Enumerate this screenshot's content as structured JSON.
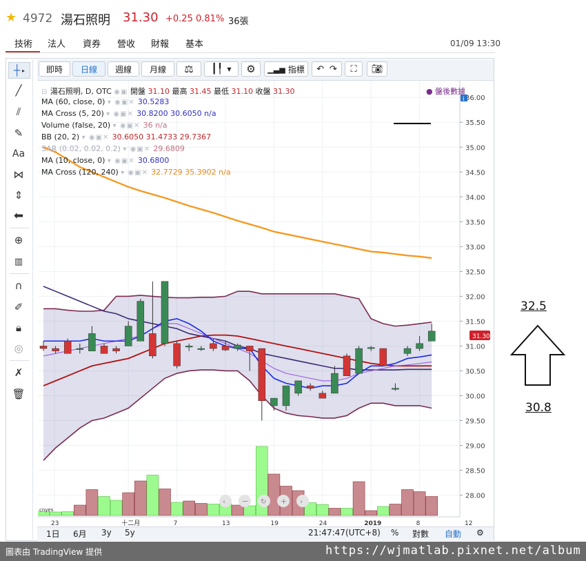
{
  "header": {
    "code": "4972",
    "name": "湯石照明",
    "price": "31.30",
    "change": "+0.25",
    "change_pct": "0.81%",
    "volume": "36張"
  },
  "tabs": [
    "技術",
    "法人",
    "資券",
    "營收",
    "財報",
    "基本"
  ],
  "datetime": "01/09 13:30",
  "toolbar": {
    "intraday": "即時",
    "daily": "日線",
    "weekly": "週線",
    "monthly": "月線",
    "indicators": "指標"
  },
  "legend": {
    "symbol": "湯石照明, D, OTC",
    "open_label": "開盤",
    "open": "31.10",
    "high_label": "最高",
    "high": "31.45",
    "low_label": "最低",
    "low": "31.10",
    "close_label": "收盤",
    "close": "31.30",
    "after_hours": "盤後數據",
    "rows": [
      {
        "name": "MA (60, close, 0)",
        "values": "30.5283",
        "cls": "a"
      },
      {
        "name": "MA Cross (5, 20)",
        "values": "30.8200",
        "v2": "30.6050",
        "v3": "n/a",
        "cls": "a"
      },
      {
        "name": "Volume (false, 20)",
        "values": "36",
        "v3": "n/a",
        "cls": "g"
      },
      {
        "name": "BB (20, 2)",
        "values": "30.6050",
        "v2": "31.4733",
        "v3": "29.7367",
        "cls": "r"
      },
      {
        "name": "SAR (0.02, 0.02, 0.2)",
        "values": "29.6809",
        "cls": "g"
      },
      {
        "name": "MA (10, close, 0)",
        "values": "30.6800",
        "cls": "a"
      },
      {
        "name": "MA Cross (120, 240)",
        "values": "32.7729",
        "v2": "35.3902",
        "v3": "n/a",
        "cls": "o"
      }
    ]
  },
  "yaxis": {
    "ticks": [
      "36.00",
      "35.50",
      "35.00",
      "34.50",
      "34.00",
      "33.50",
      "33.00",
      "32.50",
      "32.00",
      "31.50",
      "31.00",
      "30.50",
      "30.00",
      "29.50",
      "29.00",
      "28.50",
      "28.00"
    ],
    "price_label": "31.30"
  },
  "xaxis": {
    "ticks": [
      "23",
      "十二月",
      "7",
      "13",
      "19",
      "24",
      "2019",
      "8",
      "12"
    ]
  },
  "bottom": {
    "ranges": [
      "1日",
      "6月",
      "3y",
      "5y"
    ],
    "time": "21:47:47",
    "tz": "(UTC+8)",
    "pct": "%",
    "log": "對數",
    "auto": "自動"
  },
  "annotations": {
    "upper": "32.5",
    "lower": "30.8"
  },
  "footer": {
    "left": "圖表由 TradingView 提供",
    "right": "https://wjmatlab.pixnet.net/album"
  },
  "chart_data": {
    "type": "candlestick",
    "ylim": [
      27.8,
      36.1
    ],
    "candles": [
      {
        "o": 31.0,
        "h": 31.1,
        "l": 30.9,
        "c": 30.95
      },
      {
        "o": 30.95,
        "h": 31.0,
        "l": 30.85,
        "c": 30.9
      },
      {
        "o": 31.1,
        "h": 31.15,
        "l": 30.85,
        "c": 30.85
      },
      {
        "o": 30.95,
        "h": 31.05,
        "l": 30.85,
        "c": 30.95
      },
      {
        "o": 30.9,
        "h": 31.4,
        "l": 30.9,
        "c": 31.25
      },
      {
        "o": 31.0,
        "h": 31.05,
        "l": 30.85,
        "c": 30.85
      },
      {
        "o": 30.95,
        "h": 31.0,
        "l": 30.85,
        "c": 30.9
      },
      {
        "o": 31.0,
        "h": 31.5,
        "l": 31.0,
        "c": 31.4
      },
      {
        "o": 31.1,
        "h": 31.95,
        "l": 31.1,
        "c": 31.9
      },
      {
        "o": 31.25,
        "h": 32.3,
        "l": 30.75,
        "c": 30.8
      },
      {
        "o": 31.05,
        "h": 32.3,
        "l": 31.0,
        "c": 32.3
      },
      {
        "o": 31.05,
        "h": 31.1,
        "l": 30.55,
        "c": 30.6
      },
      {
        "o": 31.0,
        "h": 31.05,
        "l": 30.9,
        "c": 31.0
      },
      {
        "o": 30.95,
        "h": 31.0,
        "l": 30.9,
        "c": 30.95
      },
      {
        "o": 31.05,
        "h": 31.15,
        "l": 30.9,
        "c": 30.95
      },
      {
        "o": 31.0,
        "h": 31.1,
        "l": 30.9,
        "c": 30.92
      },
      {
        "o": 30.95,
        "h": 31.05,
        "l": 30.9,
        "c": 31.02
      },
      {
        "o": 31.0,
        "h": 31.0,
        "l": 30.5,
        "c": 30.9
      },
      {
        "o": 30.95,
        "h": 30.95,
        "l": 29.5,
        "c": 29.9
      },
      {
        "o": 29.8,
        "h": 29.95,
        "l": 29.7,
        "c": 29.95
      },
      {
        "o": 29.8,
        "h": 30.15,
        "l": 29.7,
        "c": 30.2
      },
      {
        "o": 30.05,
        "h": 30.3,
        "l": 30.0,
        "c": 30.3
      },
      {
        "o": 30.2,
        "h": 30.25,
        "l": 30.1,
        "c": 30.15
      },
      {
        "o": 30.05,
        "h": 30.1,
        "l": 29.95,
        "c": 29.95
      },
      {
        "o": 30.05,
        "h": 30.6,
        "l": 30.05,
        "c": 30.45
      },
      {
        "o": 30.8,
        "h": 30.85,
        "l": 30.4,
        "c": 30.4
      },
      {
        "o": 30.45,
        "h": 31.0,
        "l": 30.45,
        "c": 30.95
      },
      {
        "o": 30.95,
        "h": 31.0,
        "l": 30.9,
        "c": 30.97
      },
      {
        "o": 30.95,
        "h": 30.95,
        "l": 30.6,
        "c": 30.6
      },
      {
        "o": 30.15,
        "h": 30.25,
        "l": 30.1,
        "c": 30.15
      },
      {
        "o": 30.85,
        "h": 31.0,
        "l": 30.8,
        "c": 30.95
      },
      {
        "o": 30.95,
        "h": 31.2,
        "l": 30.9,
        "c": 31.05
      },
      {
        "o": 31.1,
        "h": 31.45,
        "l": 31.1,
        "c": 31.3
      }
    ],
    "volume": [
      12,
      10,
      11,
      30,
      75,
      55,
      44,
      66,
      100,
      117,
      77,
      38,
      42,
      35,
      33,
      34,
      30,
      28,
      200,
      120,
      85,
      72,
      37,
      32,
      21,
      21,
      98,
      14,
      26,
      33,
      75,
      69,
      55
    ],
    "volume_max": 200,
    "bb_mid": [
      30.2,
      30.3,
      30.4,
      30.5,
      30.6,
      30.65,
      30.7,
      30.75,
      30.85,
      30.95,
      31.05,
      31.1,
      31.15,
      31.2,
      31.22,
      31.22,
      31.2,
      31.15,
      31.1,
      31.05,
      31.0,
      30.95,
      30.9,
      30.85,
      30.8,
      30.75,
      30.7,
      30.65,
      30.62,
      30.6,
      30.6,
      30.6,
      30.6
    ],
    "bb_upper": [
      31.75,
      31.75,
      31.72,
      31.7,
      31.7,
      31.72,
      32.0,
      32.0,
      32.02,
      32.0,
      31.98,
      31.97,
      31.97,
      31.98,
      31.98,
      32.0,
      32.1,
      32.1,
      32.05,
      32.05,
      32.05,
      32.05,
      32.05,
      32.05,
      32.05,
      32.0,
      31.95,
      31.55,
      31.45,
      31.4,
      31.42,
      31.45,
      31.48
    ],
    "bb_lower": [
      28.7,
      28.95,
      29.15,
      29.35,
      29.5,
      29.55,
      29.65,
      29.75,
      29.95,
      30.15,
      30.35,
      30.45,
      30.5,
      30.52,
      30.52,
      30.5,
      30.5,
      30.3,
      30.0,
      29.75,
      29.65,
      29.6,
      29.58,
      29.55,
      29.55,
      29.6,
      29.75,
      29.85,
      29.85,
      29.8,
      29.8,
      29.8,
      29.75
    ],
    "ma5": [
      31.1,
      31.1,
      31.1,
      31.1,
      31.15,
      31.1,
      31.1,
      31.1,
      31.2,
      31.35,
      31.5,
      31.55,
      31.45,
      31.3,
      31.1,
      31.0,
      30.95,
      30.95,
      30.6,
      30.35,
      30.25,
      30.2,
      30.15,
      30.2,
      30.2,
      30.25,
      30.45,
      30.6,
      30.6,
      30.65,
      30.75,
      30.78,
      30.82
    ],
    "ma10": [
      30.8,
      30.85,
      30.9,
      30.95,
      31.0,
      31.05,
      31.1,
      31.15,
      31.2,
      31.35,
      31.45,
      31.45,
      31.35,
      31.25,
      31.15,
      31.05,
      30.95,
      30.85,
      30.7,
      30.55,
      30.45,
      30.4,
      30.35,
      30.3,
      30.3,
      30.35,
      30.45,
      30.5,
      30.55,
      30.6,
      30.62,
      30.65,
      30.68
    ],
    "ma60": [
      32.2,
      32.1,
      32.0,
      31.9,
      31.8,
      31.7,
      31.65,
      31.55,
      31.5,
      31.45,
      31.4,
      31.35,
      31.25,
      31.2,
      31.15,
      31.1,
      31.0,
      30.95,
      30.85,
      30.8,
      30.75,
      30.7,
      30.65,
      30.6,
      30.55,
      30.55,
      30.52,
      30.52,
      30.52,
      30.52,
      30.53,
      30.53,
      30.53
    ],
    "ma120": [
      35.0,
      34.9,
      34.75,
      34.6,
      34.5,
      34.4,
      34.3,
      34.2,
      34.12,
      34.05,
      33.98,
      33.9,
      33.82,
      33.75,
      33.68,
      33.6,
      33.52,
      33.45,
      33.38,
      33.3,
      33.25,
      33.2,
      33.15,
      33.1,
      33.05,
      33.0,
      32.95,
      32.9,
      32.88,
      32.85,
      32.82,
      32.8,
      32.77
    ]
  }
}
